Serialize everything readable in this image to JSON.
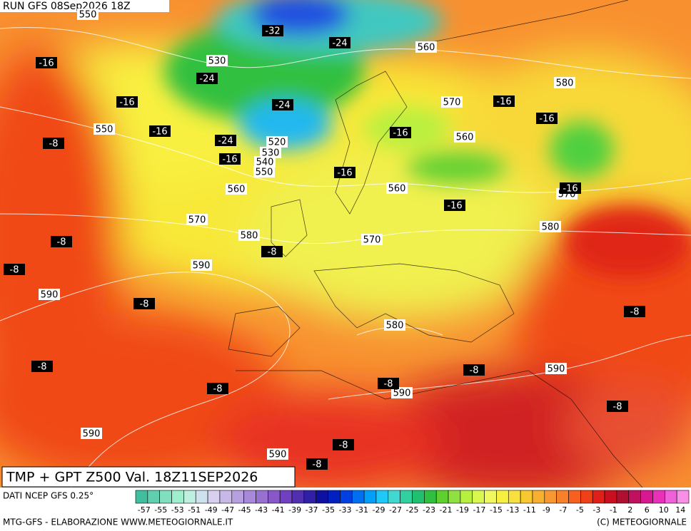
{
  "header": {
    "run": "RUN GFS 08Sep2026 18Z"
  },
  "map": {
    "gpt_labels": [
      "550",
      "530",
      "560",
      "580",
      "570",
      "550",
      "560",
      "520",
      "530",
      "540",
      "550",
      "560",
      "560",
      "570",
      "570",
      "580",
      "580",
      "570",
      "590",
      "590",
      "580",
      "590",
      "590",
      "590",
      "590"
    ],
    "temperature_labels": [
      "-16",
      "-32",
      "-24",
      "-24",
      "-16",
      "-24",
      "-16",
      "-8",
      "-24",
      "-16",
      "-16",
      "-16",
      "-16",
      "-16",
      "-16",
      "-16",
      "-8",
      "-8",
      "-8",
      "-8",
      "-8",
      "-8",
      "-8",
      "-8",
      "-8",
      "-8",
      "-8",
      "-8"
    ]
  },
  "footer": {
    "product": "TMP + GPT Z500 Val. 18Z11SEP2026",
    "source": "DATI NCEP GFS 0.25°",
    "credit": "MTG-GFS - ELABORAZIONE WWW.METEOGIORNALE.IT",
    "copyright": "(C) METEOGIORNALE"
  },
  "colorbar": {
    "labels": [
      -57,
      -55,
      -53,
      -51,
      -49,
      -47,
      -45,
      -43,
      -41,
      -39,
      -37,
      -35,
      -33,
      -31,
      -29,
      -27,
      -25,
      -23,
      -21,
      -19,
      -17,
      -15,
      -13,
      -11,
      -9,
      -7,
      -5,
      -3,
      -1,
      2,
      6,
      10,
      14
    ],
    "colors": [
      "#3fbf9f",
      "#5fcfaf",
      "#7fdfbf",
      "#9fefcf",
      "#bfefdf",
      "#cfe0ef",
      "#d8d0ef",
      "#c8b8e8",
      "#b8a0e0",
      "#a888d8",
      "#9870d0",
      "#8858c8",
      "#7040c0",
      "#5030b0",
      "#3020a8",
      "#1010a0",
      "#0020c0",
      "#0040e0",
      "#0070f0",
      "#00a0f8",
      "#20c8f8",
      "#40d8d0",
      "#30d0a0",
      "#20c070",
      "#30c040",
      "#60d030",
      "#90e040",
      "#b8f040",
      "#d8f850",
      "#f0f860",
      "#f8f040",
      "#f8e040",
      "#f8c830",
      "#f8b030",
      "#f89830",
      "#f88028",
      "#f86020",
      "#f04018",
      "#e02018",
      "#c81020",
      "#b01030",
      "#c01060",
      "#d81890",
      "#e830b8",
      "#f060d8",
      "#f890e8"
    ]
  }
}
